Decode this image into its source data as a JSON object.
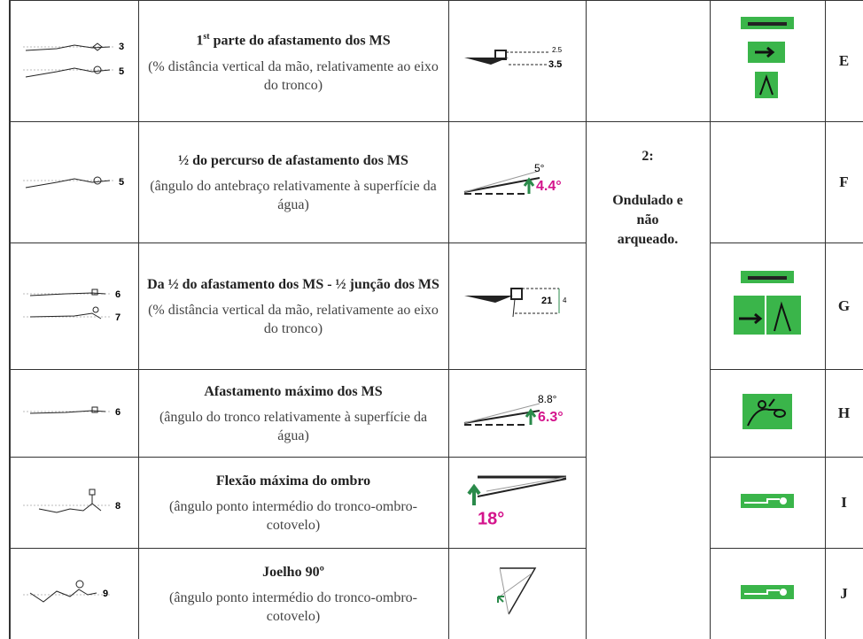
{
  "rows": [
    {
      "figure_labels": [
        "3",
        "5"
      ],
      "title_parts": [
        "1",
        "st",
        " parte do afastamento dos MS"
      ],
      "description": "(% distância vertical da mão, relativamente ao eixo do tronco)",
      "measure_labels": [
        "2.5",
        "3.5"
      ],
      "letter": "E"
    },
    {
      "figure_labels": [
        "5"
      ],
      "title": "½ do percurso de afastamento dos  MS",
      "description": "(ângulo do antebraço relativamente à superfície da água)",
      "measure_labels": [
        "5°",
        "4.4°"
      ],
      "letter": "F"
    },
    {
      "figure_labels": [
        "6",
        "7"
      ],
      "title": "Da ½ do afastamento dos MS - ½ junção dos  MS",
      "description": "(% distância vertical da mão, relativamente ao eixo do tronco)",
      "measure_labels": [
        "21",
        "4"
      ],
      "letter": "G"
    },
    {
      "figure_labels": [
        "6"
      ],
      "title": "Afastamento máximo dos  MS",
      "description": "(ângulo do tronco relativamente à superfície da água)",
      "measure_labels": [
        "8.8°",
        "6.3°"
      ],
      "letter": "H"
    },
    {
      "figure_labels": [
        "8"
      ],
      "title": "Flexão máxima do ombro",
      "description": "(ângulo ponto intermédio do tronco-ombro-cotovelo)",
      "measure_labels": [
        "18°"
      ],
      "letter": "I"
    },
    {
      "figure_labels": [
        "9"
      ],
      "title": "Joelho 90º",
      "description": "(ângulo ponto intermédio do tronco-ombro-cotovelo)",
      "letter": "J"
    }
  ],
  "phase": {
    "number": "2:",
    "label": "Ondulado e não arqueado."
  }
}
